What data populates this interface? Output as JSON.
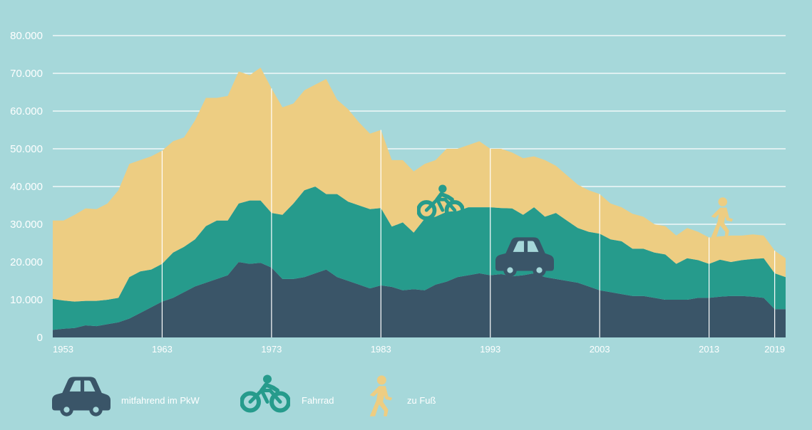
{
  "chart_data": {
    "type": "area",
    "stacked": true,
    "title": "",
    "xlabel": "",
    "ylabel": "",
    "xlim": [
      1953,
      2020
    ],
    "ylim": [
      0,
      80000
    ],
    "grid": true,
    "y_tick_labels": [
      "0",
      "10.000",
      "20.000",
      "30.000",
      "40.000",
      "50.000",
      "60.000",
      "70.000",
      "80.000"
    ],
    "y_tick_values": [
      0,
      10000,
      20000,
      30000,
      40000,
      50000,
      60000,
      70000,
      80000
    ],
    "x_tick_labels": [
      "1953",
      "1963",
      "1973",
      "1983",
      "1993",
      "2003",
      "2013",
      "2019"
    ],
    "x_tick_values": [
      1953,
      1963,
      1973,
      1983,
      1993,
      2003,
      2013,
      2019
    ],
    "x": [
      1953,
      1954,
      1955,
      1956,
      1957,
      1958,
      1959,
      1960,
      1961,
      1962,
      1963,
      1964,
      1965,
      1966,
      1967,
      1968,
      1969,
      1970,
      1971,
      1972,
      1973,
      1974,
      1975,
      1976,
      1977,
      1978,
      1979,
      1980,
      1981,
      1982,
      1983,
      1984,
      1985,
      1986,
      1987,
      1988,
      1989,
      1990,
      1991,
      1992,
      1993,
      1994,
      1995,
      1996,
      1997,
      1998,
      1999,
      2000,
      2001,
      2002,
      2003,
      2004,
      2005,
      2006,
      2007,
      2008,
      2009,
      2010,
      2011,
      2012,
      2013,
      2014,
      2015,
      2016,
      2017,
      2018,
      2019,
      2020
    ],
    "series": [
      {
        "name": "mitfahrend im PkW",
        "color": "#3a5568",
        "values": [
          2000,
          2300,
          2500,
          3200,
          3000,
          3500,
          4000,
          5000,
          6500,
          8000,
          9500,
          10500,
          12000,
          13500,
          14500,
          15500,
          16500,
          20000,
          19500,
          19800,
          18500,
          15500,
          15500,
          16000,
          17000,
          18000,
          16000,
          15000,
          14000,
          13000,
          13800,
          13400,
          12500,
          12800,
          12500,
          14000,
          14800,
          16000,
          16500,
          17000,
          16500,
          16800,
          16200,
          16500,
          17000,
          16000,
          15500,
          15000,
          14500,
          13500,
          12500,
          12000,
          11500,
          11000,
          11000,
          10500,
          10000,
          10000,
          10000,
          10500,
          10500,
          10800,
          11000,
          11000,
          10800,
          10500,
          7500,
          7500
        ]
      },
      {
        "name": "Fahrrad",
        "color": "#269b8c",
        "values": [
          8200,
          7500,
          7000,
          6500,
          6700,
          6500,
          6500,
          11000,
          11000,
          10000,
          10000,
          12000,
          12000,
          12500,
          15000,
          15500,
          14500,
          15500,
          16800,
          16500,
          14500,
          17000,
          20000,
          23000,
          23000,
          20000,
          22000,
          21000,
          21000,
          21000,
          20500,
          16000,
          18000,
          15000,
          19000,
          18000,
          18500,
          17500,
          18000,
          17500,
          18000,
          17500,
          18000,
          16000,
          17500,
          16000,
          17500,
          16000,
          14500,
          14500,
          15000,
          14000,
          14000,
          12500,
          12500,
          12000,
          12000,
          9500,
          11000,
          10000,
          9000,
          9800,
          9000,
          9500,
          10000,
          10500,
          9500,
          8500
        ]
      },
      {
        "name": "zu Fuß",
        "color": "#edcd82",
        "values": [
          20800,
          21200,
          23000,
          24500,
          24300,
          25500,
          28500,
          30000,
          29500,
          30000,
          30000,
          29500,
          29000,
          31500,
          34000,
          32500,
          33000,
          35000,
          33200,
          35200,
          33000,
          28500,
          26500,
          26500,
          27000,
          30500,
          25000,
          24500,
          22000,
          20000,
          20700,
          17600,
          16500,
          16200,
          14500,
          15000,
          16700,
          16500,
          16500,
          17500,
          15500,
          15700,
          14800,
          15000,
          13500,
          15000,
          12500,
          12000,
          11500,
          11000,
          10500,
          9500,
          9000,
          9300,
          8500,
          7500,
          7500,
          7500,
          8000,
          7500,
          7000,
          6200,
          7000,
          6500,
          6500,
          6000,
          6000,
          5000
        ]
      }
    ],
    "annotations": [
      {
        "icon": "bicycle-icon",
        "series": "Fahrrad"
      },
      {
        "icon": "car-icon",
        "series": "mitfahrend im PkW"
      },
      {
        "icon": "pedestrian-icon",
        "series": "zu Fuß"
      }
    ]
  },
  "legend": [
    {
      "label": "mitfahrend im PkW",
      "icon": "car-icon",
      "color": "#3a5568"
    },
    {
      "label": "Fahrrad",
      "icon": "bicycle-icon",
      "color": "#269b8c"
    },
    {
      "label": "zu Fuß",
      "icon": "pedestrian-icon",
      "color": "#edcd82"
    }
  ],
  "colors": {
    "background": "#a6d8da",
    "grid": "#ffffff",
    "text": "#ffffff"
  }
}
